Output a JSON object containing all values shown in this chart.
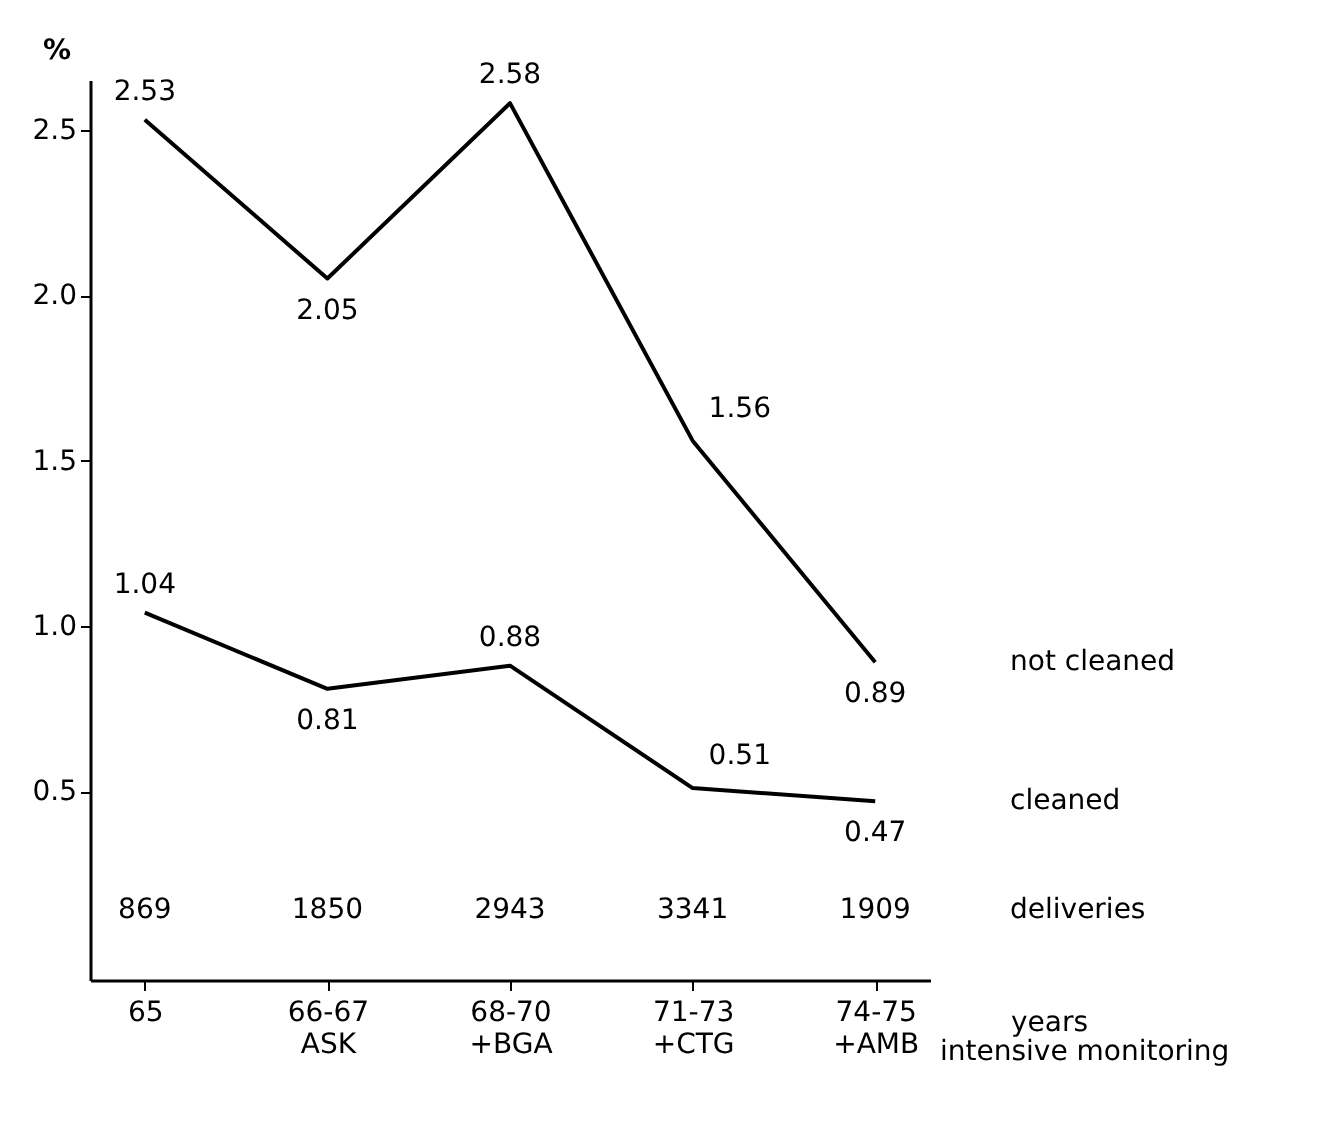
{
  "chart_data": {
    "type": "line",
    "ylabel": "%",
    "xlabel": "years",
    "categories": [
      "65",
      "66-67\nASK",
      "68-70\n+BGA",
      "71-73\n+CTG",
      "74-75\n+AMB"
    ],
    "series": [
      {
        "name": "not cleaned",
        "color": "#000000",
        "values": [
          2.53,
          2.05,
          2.58,
          1.56,
          0.89
        ]
      },
      {
        "name": "cleaned",
        "color": "#000000",
        "values": [
          1.04,
          0.81,
          0.88,
          0.51,
          0.47
        ]
      }
    ],
    "data_labels": true,
    "marker": "none",
    "line_style": "solid",
    "grid": false,
    "ylim": [
      -0.07,
      2.65
    ],
    "yticks": [
      0.5,
      {
        "value": 1,
        "label": "1.0"
      },
      1.5,
      {
        "value": 2,
        "label": "2.0"
      },
      2.5
    ],
    "annotations": [
      "869",
      "1850",
      "2943",
      "3341",
      "1909",
      "deliveries",
      "intensive monitoring"
    ]
  }
}
